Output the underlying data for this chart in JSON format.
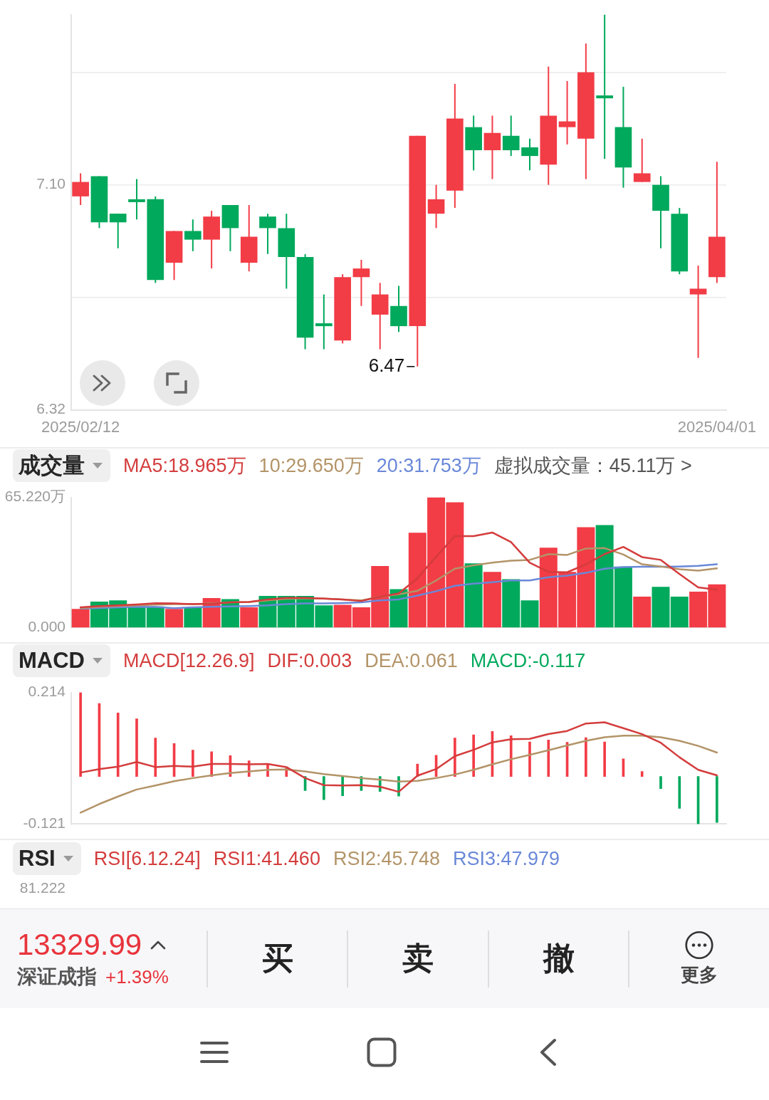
{
  "chart_data": [
    {
      "type": "candlestick",
      "categories": [
        "2025/02/12",
        null,
        null,
        null,
        null,
        null,
        null,
        null,
        null,
        null,
        null,
        null,
        null,
        null,
        null,
        null,
        null,
        null,
        null,
        null,
        null,
        null,
        null,
        null,
        null,
        null,
        null,
        null,
        null,
        null,
        null,
        null,
        null,
        null,
        "2025/04/01"
      ],
      "ohlc": [
        [
          7.06,
          7.14,
          7.03,
          7.11
        ],
        [
          7.13,
          7.13,
          6.95,
          6.97
        ],
        [
          7.0,
          7.0,
          6.88,
          6.97
        ],
        [
          7.05,
          7.12,
          6.98,
          7.04
        ],
        [
          7.05,
          7.06,
          6.76,
          6.77
        ],
        [
          6.83,
          6.94,
          6.77,
          6.94
        ],
        [
          6.94,
          6.98,
          6.87,
          6.91
        ],
        [
          6.91,
          7.01,
          6.81,
          6.99
        ],
        [
          7.03,
          7.03,
          6.87,
          6.95
        ],
        [
          6.83,
          7.03,
          6.8,
          6.92
        ],
        [
          6.99,
          7.0,
          6.86,
          6.95
        ],
        [
          6.95,
          7.0,
          6.74,
          6.85
        ],
        [
          6.85,
          6.86,
          6.53,
          6.57
        ],
        [
          6.62,
          6.72,
          6.53,
          6.61
        ],
        [
          6.56,
          6.79,
          6.55,
          6.78
        ],
        [
          6.78,
          6.84,
          6.68,
          6.81
        ],
        [
          6.65,
          6.76,
          6.53,
          6.72
        ],
        [
          6.68,
          6.75,
          6.59,
          6.61
        ],
        [
          6.61,
          7.27,
          6.47,
          7.27
        ],
        [
          7.0,
          7.1,
          6.95,
          7.05
        ],
        [
          7.08,
          7.45,
          7.02,
          7.33
        ],
        [
          7.3,
          7.34,
          7.15,
          7.22
        ],
        [
          7.22,
          7.34,
          7.12,
          7.28
        ],
        [
          7.27,
          7.34,
          7.2,
          7.22
        ],
        [
          7.23,
          7.26,
          7.15,
          7.2
        ],
        [
          7.17,
          7.51,
          7.1,
          7.34
        ],
        [
          7.3,
          7.46,
          7.24,
          7.32
        ],
        [
          7.26,
          7.59,
          7.12,
          7.49
        ],
        [
          7.41,
          7.69,
          7.19,
          7.4
        ],
        [
          7.3,
          7.44,
          7.09,
          7.16
        ],
        [
          7.11,
          7.26,
          7.11,
          7.14
        ],
        [
          7.1,
          7.13,
          6.88,
          7.01
        ],
        [
          7.0,
          7.02,
          6.79,
          6.8
        ],
        [
          6.72,
          6.82,
          6.5,
          6.74
        ],
        [
          6.78,
          7.18,
          6.76,
          6.92
        ]
      ],
      "colors": [
        "#f23c46",
        "#00a95c",
        "#00a95c",
        "#00a95c",
        "#00a95c",
        "#f23c46",
        "#00a95c",
        "#f23c46",
        "#00a95c",
        "#f23c46",
        "#00a95c",
        "#00a95c",
        "#00a95c",
        "#00a95c",
        "#f23c46",
        "#f23c46",
        "#f23c46",
        "#00a95c",
        "#f23c46",
        "#f23c46",
        "#f23c46",
        "#00a95c",
        "#f23c46",
        "#00a95c",
        "#00a95c",
        "#f23c46",
        "#f23c46",
        "#f23c46",
        "#00a95c",
        "#00a95c",
        "#f23c46",
        "#00a95c",
        "#00a95c",
        "#f23c46",
        "#f23c46"
      ],
      "ylim": [
        6.32,
        7.69
      ],
      "yticks": [
        6.32,
        {
          "value": 6.71,
          "label": null
        },
        {
          "value": 7.1,
          "label": "7.10"
        },
        {
          "value": 7.49,
          "label": null
        }
      ],
      "grid": "y",
      "annotations": [
        "6.47"
      ]
    },
    {
      "type": "bar",
      "title": "成交量",
      "categories": [
        null,
        null,
        null,
        null,
        null,
        null,
        null,
        null,
        null,
        null,
        null,
        null,
        null,
        null,
        null,
        null,
        null,
        null,
        null,
        null,
        null,
        null,
        null,
        null,
        null,
        null,
        null,
        null,
        null,
        null,
        null,
        null,
        null,
        null,
        null
      ],
      "series": [
        {
          "type": "bar",
          "values": [
            9.3,
            13.0,
            13.6,
            10.6,
            10.6,
            9.3,
            10.1,
            14.8,
            14.2,
            10.1,
            15.8,
            15.8,
            15.8,
            11.1,
            11.4,
            10.1,
            30.8,
            19.2,
            47.5,
            65.22,
            62.8,
            32.2,
            27.9,
            24.2,
            13.6,
            40.0,
            27.9,
            50.3,
            51.3,
            30.6,
            15.5,
            20.4,
            15.5,
            18.0,
            21.6
          ],
          "colors": [
            "#f23c46",
            "#00a95c",
            "#00a95c",
            "#00a95c",
            "#00a95c",
            "#f23c46",
            "#00a95c",
            "#f23c46",
            "#00a95c",
            "#f23c46",
            "#00a95c",
            "#00a95c",
            "#00a95c",
            "#00a95c",
            "#f23c46",
            "#f23c46",
            "#f23c46",
            "#00a95c",
            "#f23c46",
            "#f23c46",
            "#f23c46",
            "#00a95c",
            "#f23c46",
            "#00a95c",
            "#00a95c",
            "#f23c46",
            "#f23c46",
            "#f23c46",
            "#00a95c",
            "#00a95c",
            "#f23c46",
            "#00a95c",
            "#00a95c",
            "#f23c46",
            "#f23c46"
          ]
        },
        {
          "type": "line",
          "name": "MA5:18.965万",
          "color": "#d43c3c",
          "values": [
            10.1,
            10.8,
            11.1,
            11.6,
            12.2,
            12.1,
            11.7,
            11.9,
            12.6,
            12.8,
            14.1,
            14.9,
            14.9,
            14.5,
            14.1,
            13.3,
            15.5,
            17.1,
            24.7,
            35.5,
            45.8,
            45.8,
            47.6,
            42.8,
            32.5,
            27.9,
            27.7,
            31.7,
            36.8,
            40.4,
            35.3,
            33.9,
            26.8,
            20.1,
            18.965
          ]
        },
        {
          "type": "line",
          "name": "10:29.650万",
          "color": "#b39468",
          "values": [
            9.7,
            10.4,
            10.8,
            11.1,
            11.5,
            11.7,
            11.7,
            12.1,
            12.6,
            12.8,
            13.6,
            14.4,
            14.7,
            14.5,
            14.1,
            13.6,
            15.5,
            16.6,
            18.4,
            23.6,
            29.5,
            31.2,
            32.5,
            33.5,
            33.9,
            36.8,
            36.4,
            39.6,
            39.8,
            36.6,
            31.7,
            30.6,
            29.2,
            28.5,
            29.65
          ]
        },
        {
          "type": "line",
          "name": "20:31.753万",
          "color": "#6a88d8",
          "values": [
            9.5,
            9.8,
            10.1,
            10.4,
            10.3,
            9.7,
            10.1,
            10.4,
            10.6,
            10.8,
            11.1,
            11.7,
            12.1,
            12.1,
            12.3,
            12.6,
            13.6,
            14.1,
            16.0,
            18.2,
            20.9,
            22.0,
            22.7,
            23.6,
            23.6,
            25.2,
            26.0,
            27.4,
            29.5,
            30.3,
            30.5,
            30.5,
            30.6,
            30.9,
            31.753
          ]
        }
      ],
      "ylim": [
        0,
        65.22
      ],
      "yticks": [
        {
          "value": 0,
          "label": "0.000"
        },
        {
          "value": 65.22,
          "label": "65.220万"
        }
      ],
      "legend": "top left",
      "tick_labels": "y",
      "annotations": [
        "虚拟成交量：45.11万 >"
      ]
    },
    {
      "type": "bar",
      "title": "MACD",
      "subtitle": "MACD[12.26.9]",
      "categories": [
        null,
        null,
        null,
        null,
        null,
        null,
        null,
        null,
        null,
        null,
        null,
        null,
        null,
        null,
        null,
        null,
        null,
        null,
        null,
        null,
        null,
        null,
        null,
        null,
        null,
        null,
        null,
        null,
        null,
        null,
        null,
        null,
        null,
        null,
        null
      ],
      "series": [
        {
          "type": "line",
          "name": "DIF:0.003",
          "color": "#d43c3c",
          "values": [
            0.01,
            0.019,
            0.025,
            0.037,
            0.024,
            0.027,
            0.025,
            0.032,
            0.032,
            0.031,
            0.032,
            0.024,
            -0.004,
            -0.022,
            -0.023,
            -0.022,
            -0.026,
            -0.039,
            0.002,
            0.019,
            0.052,
            0.068,
            0.087,
            0.095,
            0.096,
            0.108,
            0.116,
            0.135,
            0.138,
            0.123,
            0.108,
            0.086,
            0.049,
            0.017,
            0.003
          ]
        },
        {
          "type": "line",
          "name": "DEA:0.061",
          "color": "#b39468",
          "values": [
            -0.092,
            -0.07,
            -0.051,
            -0.033,
            -0.023,
            -0.012,
            -0.004,
            0.003,
            0.009,
            0.013,
            0.017,
            0.018,
            0.013,
            0.006,
            0.001,
            -0.004,
            -0.008,
            -0.013,
            -0.011,
            -0.004,
            0.005,
            0.017,
            0.031,
            0.044,
            0.055,
            0.067,
            0.079,
            0.091,
            0.1,
            0.104,
            0.104,
            0.1,
            0.091,
            0.078,
            0.061
          ]
        },
        {
          "type": "bar",
          "name": "MACD:-0.117",
          "values": [
            0.214,
            0.186,
            0.162,
            0.147,
            0.098,
            0.084,
            0.067,
            0.063,
            0.053,
            0.04,
            0.033,
            0.021,
            -0.036,
            -0.059,
            -0.049,
            -0.036,
            -0.038,
            -0.05,
            0.032,
            0.054,
            0.098,
            0.106,
            0.115,
            0.104,
            0.088,
            0.093,
            0.087,
            0.099,
            0.088,
            0.045,
            0.013,
            -0.031,
            -0.081,
            -0.121,
            -0.117
          ],
          "colors": [
            "#f23c46",
            "#f23c46",
            "#f23c46",
            "#f23c46",
            "#f23c46",
            "#f23c46",
            "#f23c46",
            "#f23c46",
            "#f23c46",
            "#f23c46",
            "#f23c46",
            "#f23c46",
            "#00a95c",
            "#00a95c",
            "#00a95c",
            "#00a95c",
            "#00a95c",
            "#00a95c",
            "#f23c46",
            "#f23c46",
            "#f23c46",
            "#f23c46",
            "#f23c46",
            "#f23c46",
            "#f23c46",
            "#f23c46",
            "#f23c46",
            "#f23c46",
            "#f23c46",
            "#f23c46",
            "#f23c46",
            "#00a95c",
            "#00a95c",
            "#00a95c",
            "#00a95c"
          ]
        }
      ],
      "ylim": [
        -0.121,
        0.214
      ],
      "yticks": [
        -0.121,
        0.214
      ],
      "legend": "top left",
      "tick_labels": "y"
    },
    {
      "type": "other",
      "title": "RSI",
      "subtitle": "RSI[6.12.24]",
      "annotations": [
        "RSI1:41.460",
        "RSI2:45.748",
        "RSI3:47.979",
        "81.222"
      ]
    },
    {
      "type": "other",
      "annotations": [
        "13329.99",
        "深证成指",
        "+1.39%",
        "买",
        "卖",
        "撤",
        "更多"
      ]
    }
  ]
}
